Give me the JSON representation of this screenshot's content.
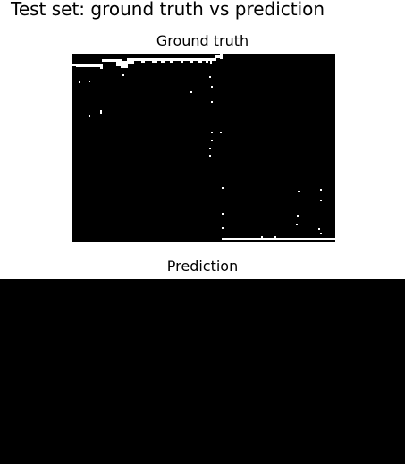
{
  "title": "Test set: ground truth vs prediction",
  "panels": {
    "ground_truth": {
      "title": "Ground truth",
      "background": "#000000",
      "foreground": "#ffffff"
    },
    "prediction": {
      "title": "Prediction",
      "background": "#000000",
      "foreground": "#ffffff"
    }
  }
}
